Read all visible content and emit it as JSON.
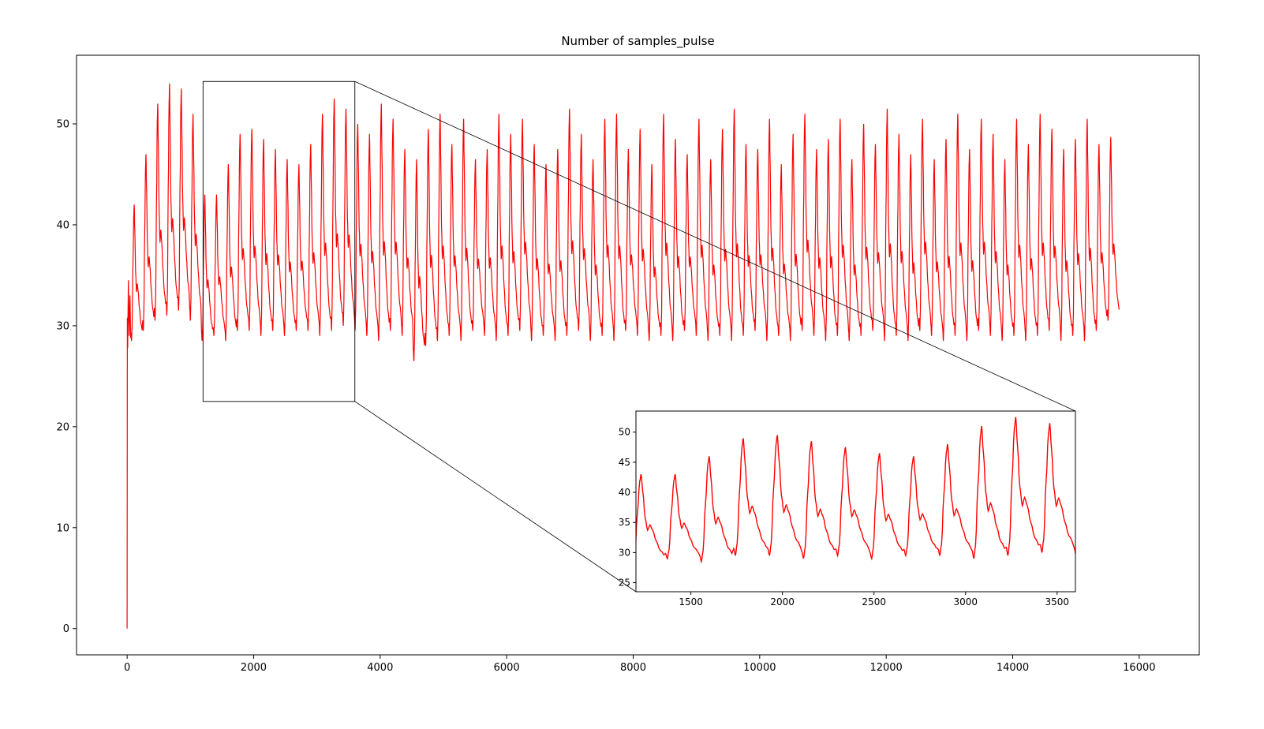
{
  "chart_data": {
    "type": "line",
    "title": "Number of samples_pulse",
    "series_color": "#ff0000",
    "frame_color": "#000000",
    "background": "#ffffff",
    "legend": "none",
    "grid": false,
    "main_axes": {
      "xlim": [
        -800,
        16950
      ],
      "ylim": [
        -2.6,
        56.8
      ],
      "xticks": [
        0,
        2000,
        4000,
        6000,
        8000,
        10000,
        12000,
        14000,
        16000
      ],
      "yticks": [
        0,
        10,
        20,
        30,
        40,
        50
      ]
    },
    "inset_axes": {
      "xlim": [
        1200,
        3600
      ],
      "ylim": [
        23.5,
        53.5
      ],
      "xticks": [
        1500,
        2000,
        2500,
        3000,
        3500
      ],
      "yticks": [
        25,
        30,
        35,
        40,
        45,
        50
      ]
    },
    "zoom_rect": {
      "x0": 1200,
      "x1": 3600,
      "y0": 22.5,
      "y1": 54.2
    },
    "waveform": {
      "description": "pulse-shaped periodic signal; per-cycle peak/trough values read from plot",
      "start_x": 60,
      "period": 186,
      "lead_in": [
        [
          0,
          0
        ],
        [
          3,
          30.8
        ],
        [
          8,
          27.8
        ],
        [
          20,
          34.5
        ],
        [
          32,
          29
        ],
        [
          44,
          33
        ],
        [
          56,
          28.8
        ]
      ],
      "shape": [
        [
          0.0,
          0.06
        ],
        [
          0.05,
          0.0
        ],
        [
          0.1,
          0.1
        ],
        [
          0.17,
          0.55
        ],
        [
          0.24,
          0.92
        ],
        [
          0.28,
          1.0
        ],
        [
          0.33,
          0.8
        ],
        [
          0.4,
          0.5
        ],
        [
          0.47,
          0.36
        ],
        [
          0.54,
          0.42
        ],
        [
          0.62,
          0.36
        ],
        [
          0.72,
          0.24
        ],
        [
          0.84,
          0.13
        ],
        [
          1.0,
          0.06
        ]
      ],
      "peaks": [
        42,
        47,
        52,
        54,
        53.5,
        51,
        43,
        43,
        46,
        49,
        49.5,
        48.5,
        47.5,
        46.5,
        46,
        48,
        51,
        52.5,
        51.5,
        50,
        49,
        52,
        50.5,
        47.5,
        46.5,
        49.5,
        51,
        48,
        50.5,
        46.5,
        47.5,
        51,
        49,
        50.5,
        48,
        46,
        47.5,
        51.5,
        49,
        46.5,
        50.5,
        51,
        47.5,
        49.5,
        46,
        51,
        48.5,
        47,
        50.5,
        46.5,
        49.5,
        51.5,
        48,
        47.5,
        50.5,
        46,
        49,
        51,
        47.5,
        48.5,
        50.5,
        46.5,
        50,
        48,
        51.5,
        49,
        47,
        50.5,
        46.5,
        48.5,
        51,
        47.5,
        50.5,
        49,
        46.5,
        50.5,
        48,
        51,
        49.5,
        47.5,
        48.5,
        50.5,
        48,
        48.7
      ],
      "troughs": [
        28.5,
        29.5,
        30.5,
        31,
        31.5,
        30.5,
        28.5,
        29,
        28.5,
        29.5,
        29.5,
        29,
        29.5,
        29,
        29.5,
        29.5,
        29,
        29.5,
        30,
        29.5,
        29,
        28.5,
        29.5,
        29,
        26.5,
        28,
        28.5,
        29,
        28.5,
        29.5,
        29,
        28.5,
        29,
        29.5,
        28.5,
        29,
        28.5,
        29,
        29.5,
        28.5,
        29,
        28.5,
        29.5,
        29,
        28.5,
        29,
        28.5,
        29.5,
        29,
        28.5,
        29,
        28.5,
        29,
        29.5,
        28.5,
        29,
        28.5,
        29.5,
        29,
        28.5,
        29,
        28.5,
        29,
        29.5,
        28.5,
        29,
        28.5,
        29.5,
        29,
        28.5,
        29,
        28.5,
        29.5,
        29,
        28.5,
        29,
        28.5,
        29,
        29.5,
        28.5,
        29,
        28.5,
        29.5,
        30.5
      ]
    }
  }
}
